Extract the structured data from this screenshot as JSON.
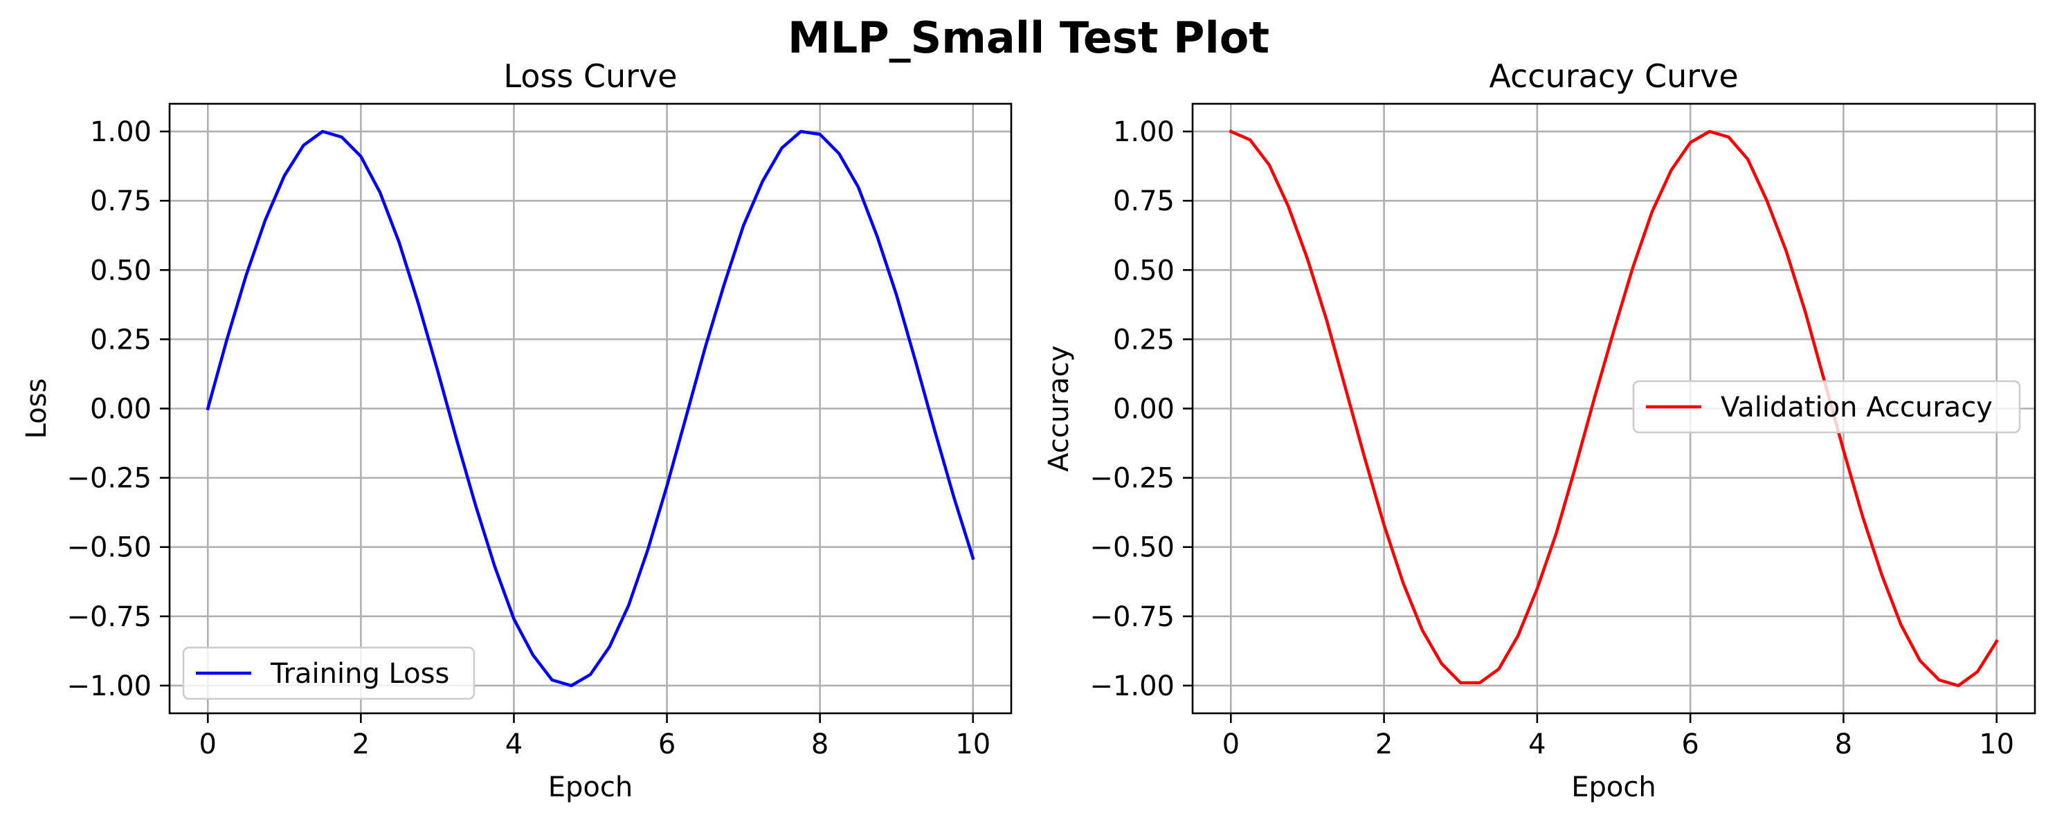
{
  "figure": {
    "title": "MLP_Small Test Plot"
  },
  "chart_data": [
    {
      "type": "line",
      "title": "Loss Curve",
      "xlabel": "Epoch",
      "ylabel": "Loss",
      "xlim": [
        -0.5,
        10.5
      ],
      "ylim": [
        -1.1,
        1.1
      ],
      "xticks": [
        0,
        2,
        4,
        6,
        8,
        10
      ],
      "yticks": [
        -1.0,
        -0.75,
        -0.5,
        -0.25,
        0.0,
        0.25,
        0.5,
        0.75,
        1.0
      ],
      "xtick_labels": [
        "0",
        "2",
        "4",
        "6",
        "8",
        "10"
      ],
      "ytick_labels": [
        "−1.00",
        "−0.75",
        "−0.50",
        "−0.25",
        "0.00",
        "0.25",
        "0.50",
        "0.75",
        "1.00"
      ],
      "grid": true,
      "legend": "lower-left",
      "series": [
        {
          "name": "Training Loss",
          "color": "#0000ff",
          "x": [
            0.0,
            0.25,
            0.5,
            0.75,
            1.0,
            1.25,
            1.5,
            1.75,
            2.0,
            2.25,
            2.5,
            2.75,
            3.0,
            3.25,
            3.5,
            3.75,
            4.0,
            4.25,
            4.5,
            4.75,
            5.0,
            5.25,
            5.5,
            5.75,
            6.0,
            6.25,
            6.5,
            6.75,
            7.0,
            7.25,
            7.5,
            7.75,
            8.0,
            8.25,
            8.5,
            8.75,
            9.0,
            9.25,
            9.5,
            9.75,
            10.0
          ],
          "y": [
            0.0,
            0.25,
            0.48,
            0.68,
            0.84,
            0.95,
            1.0,
            0.98,
            0.91,
            0.78,
            0.6,
            0.38,
            0.14,
            -0.11,
            -0.35,
            -0.57,
            -0.76,
            -0.89,
            -0.98,
            -1.0,
            -0.96,
            -0.86,
            -0.71,
            -0.51,
            -0.28,
            -0.03,
            0.22,
            0.45,
            0.66,
            0.82,
            0.94,
            1.0,
            0.99,
            0.92,
            0.8,
            0.62,
            0.41,
            0.17,
            -0.08,
            -0.32,
            -0.54
          ]
        }
      ]
    },
    {
      "type": "line",
      "title": "Accuracy Curve",
      "xlabel": "Epoch",
      "ylabel": "Accuracy",
      "xlim": [
        -0.5,
        10.5
      ],
      "ylim": [
        -1.1,
        1.1
      ],
      "xticks": [
        0,
        2,
        4,
        6,
        8,
        10
      ],
      "yticks": [
        -1.0,
        -0.75,
        -0.5,
        -0.25,
        0.0,
        0.25,
        0.5,
        0.75,
        1.0
      ],
      "xtick_labels": [
        "0",
        "2",
        "4",
        "6",
        "8",
        "10"
      ],
      "ytick_labels": [
        "−1.00",
        "−0.75",
        "−0.50",
        "−0.25",
        "0.00",
        "0.25",
        "0.50",
        "0.75",
        "1.00"
      ],
      "grid": true,
      "legend": "center-right",
      "series": [
        {
          "name": "Validation Accuracy",
          "color": "#ff0000",
          "x": [
            0.0,
            0.25,
            0.5,
            0.75,
            1.0,
            1.25,
            1.5,
            1.75,
            2.0,
            2.25,
            2.5,
            2.75,
            3.0,
            3.25,
            3.5,
            3.75,
            4.0,
            4.25,
            4.5,
            4.75,
            5.0,
            5.25,
            5.5,
            5.75,
            6.0,
            6.25,
            6.5,
            6.75,
            7.0,
            7.25,
            7.5,
            7.75,
            8.0,
            8.25,
            8.5,
            8.75,
            9.0,
            9.25,
            9.5,
            9.75,
            10.0
          ],
          "y": [
            1.0,
            0.97,
            0.88,
            0.73,
            0.54,
            0.32,
            0.07,
            -0.18,
            -0.42,
            -0.63,
            -0.8,
            -0.92,
            -0.99,
            -0.99,
            -0.94,
            -0.82,
            -0.65,
            -0.45,
            -0.21,
            0.04,
            0.28,
            0.51,
            0.71,
            0.86,
            0.96,
            1.0,
            0.98,
            0.9,
            0.75,
            0.57,
            0.35,
            0.1,
            -0.15,
            -0.39,
            -0.6,
            -0.78,
            -0.91,
            -0.98,
            -1.0,
            -0.95,
            -0.84
          ]
        }
      ]
    }
  ]
}
